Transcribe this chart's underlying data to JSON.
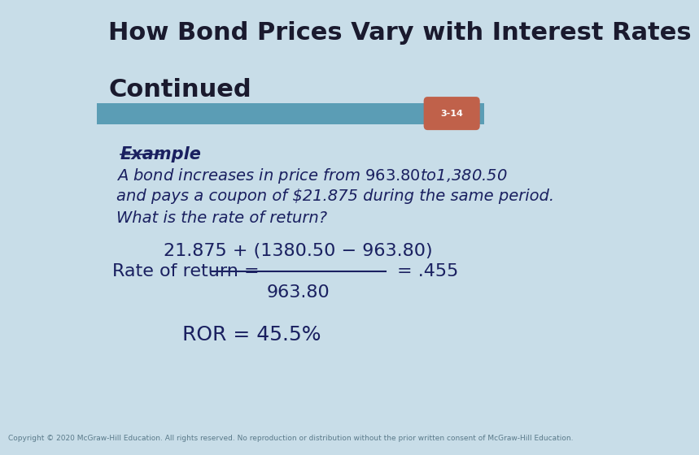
{
  "title_line1": "How Bond Prices Vary with Interest Rates",
  "title_line2": "Continued",
  "slide_number": "3-14",
  "bg_color": "#c8dde8",
  "header_bar_color": "#5b9db5",
  "title_color": "#1a1a2e",
  "slide_num_bg": "#c0614a",
  "slide_num_color": "#ffffff",
  "example_label": "Example",
  "body_text_line1": "A bond increases in price from $963.80 to $1,380.50",
  "body_text_line2": "and pays a coupon of $21.875 during the same period.",
  "body_text_line3": "What is the rate of return?",
  "formula_label": "Rate of return =",
  "formula_numerator": "21.875 + (1380.50 − 963.80)",
  "formula_denominator": "963.80",
  "formula_result": "= .455",
  "ror_text": "ROR = 45.5%",
  "copyright_text": "Copyright © 2020 McGraw-Hill Education. All rights reserved. No reproduction or distribution without the prior written consent of McGraw-Hill Education.",
  "title_fontsize": 22,
  "body_fontsize": 14,
  "formula_fontsize": 16,
  "ror_fontsize": 18,
  "copyright_fontsize": 6.5
}
